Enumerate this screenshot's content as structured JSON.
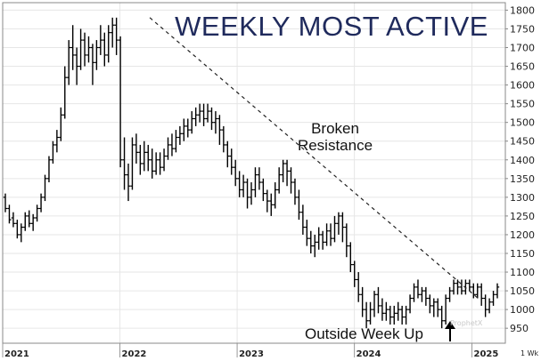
{
  "chart_data": {
    "type": "ohlc",
    "title": "WEEKLY MOST ACTIVE",
    "ylim": [
      910,
      1820
    ],
    "y_ticks": [
      "950",
      "1000",
      "1050",
      "1100",
      "1150",
      "1200",
      "1250",
      "1300",
      "1350",
      "1400",
      "1450",
      "1500",
      "1550",
      "1600",
      "1650",
      "1700",
      "1750",
      "1800"
    ],
    "x_ticks": [
      "2021",
      "2022",
      "2023",
      "2024",
      "2025"
    ],
    "x_tick_dates": [
      "2021-01-01",
      "2022-01-01",
      "2023-01-01",
      "2024-01-01",
      "2025-01-01"
    ],
    "interval_label": "1 Wk",
    "watermark": "ProphetX",
    "annotations": {
      "broken_resistance": [
        "Broken",
        "Resistance"
      ],
      "outside_week_up": "Outside Week Up"
    },
    "trendline": {
      "style": "dashed",
      "from": {
        "date": "2022-04-04",
        "y": 1780
      },
      "to": {
        "date": "2025-01-20",
        "y": 1030
      }
    },
    "series": [
      {
        "values": [
          [
            1300,
            1270,
            1310,
            1260
          ],
          [
            1270,
            1240,
            1280,
            1230
          ],
          [
            1245,
            1230,
            1260,
            1220
          ],
          [
            1230,
            1200,
            1240,
            1190
          ],
          [
            1200,
            1220,
            1230,
            1180
          ],
          [
            1220,
            1250,
            1260,
            1210
          ],
          [
            1250,
            1230,
            1265,
            1220
          ],
          [
            1230,
            1245,
            1255,
            1210
          ],
          [
            1245,
            1270,
            1280,
            1235
          ],
          [
            1270,
            1300,
            1310,
            1260
          ],
          [
            1300,
            1350,
            1360,
            1290
          ],
          [
            1350,
            1400,
            1410,
            1340
          ],
          [
            1400,
            1440,
            1450,
            1390
          ],
          [
            1440,
            1460,
            1480,
            1420
          ],
          [
            1460,
            1520,
            1540,
            1450
          ],
          [
            1520,
            1620,
            1650,
            1510
          ],
          [
            1620,
            1700,
            1720,
            1600
          ],
          [
            1700,
            1680,
            1760,
            1640
          ],
          [
            1680,
            1650,
            1700,
            1600
          ],
          [
            1650,
            1720,
            1750,
            1640
          ],
          [
            1720,
            1680,
            1740,
            1650
          ],
          [
            1680,
            1700,
            1730,
            1660
          ],
          [
            1700,
            1660,
            1710,
            1600
          ],
          [
            1660,
            1700,
            1720,
            1640
          ],
          [
            1700,
            1720,
            1760,
            1680
          ],
          [
            1720,
            1680,
            1740,
            1650
          ],
          [
            1680,
            1740,
            1760,
            1660
          ],
          [
            1740,
            1760,
            1780,
            1700
          ],
          [
            1760,
            1720,
            1780,
            1680
          ],
          [
            1720,
            1400,
            1730,
            1380
          ],
          [
            1400,
            1360,
            1460,
            1320
          ],
          [
            1360,
            1330,
            1390,
            1290
          ],
          [
            1330,
            1440,
            1460,
            1320
          ],
          [
            1440,
            1420,
            1470,
            1390
          ],
          [
            1420,
            1390,
            1440,
            1360
          ],
          [
            1390,
            1420,
            1450,
            1370
          ],
          [
            1420,
            1400,
            1440,
            1370
          ],
          [
            1400,
            1370,
            1430,
            1350
          ],
          [
            1370,
            1400,
            1420,
            1360
          ],
          [
            1400,
            1380,
            1420,
            1360
          ],
          [
            1380,
            1410,
            1430,
            1370
          ],
          [
            1410,
            1440,
            1460,
            1400
          ],
          [
            1440,
            1430,
            1470,
            1410
          ],
          [
            1430,
            1460,
            1480,
            1420
          ],
          [
            1460,
            1470,
            1490,
            1440
          ],
          [
            1470,
            1490,
            1510,
            1450
          ],
          [
            1490,
            1480,
            1510,
            1460
          ],
          [
            1480,
            1510,
            1530,
            1470
          ],
          [
            1510,
            1520,
            1540,
            1490
          ],
          [
            1520,
            1530,
            1550,
            1500
          ],
          [
            1530,
            1510,
            1550,
            1490
          ],
          [
            1510,
            1530,
            1550,
            1500
          ],
          [
            1530,
            1500,
            1540,
            1480
          ],
          [
            1500,
            1510,
            1530,
            1470
          ],
          [
            1510,
            1480,
            1520,
            1440
          ],
          [
            1480,
            1440,
            1490,
            1420
          ],
          [
            1440,
            1410,
            1450,
            1380
          ],
          [
            1410,
            1380,
            1430,
            1360
          ],
          [
            1380,
            1350,
            1400,
            1330
          ],
          [
            1350,
            1320,
            1370,
            1300
          ],
          [
            1320,
            1340,
            1360,
            1300
          ],
          [
            1340,
            1300,
            1350,
            1270
          ],
          [
            1300,
            1320,
            1340,
            1280
          ],
          [
            1320,
            1360,
            1380,
            1300
          ],
          [
            1360,
            1340,
            1380,
            1320
          ],
          [
            1340,
            1310,
            1350,
            1290
          ],
          [
            1310,
            1290,
            1320,
            1260
          ],
          [
            1290,
            1280,
            1310,
            1250
          ],
          [
            1280,
            1320,
            1340,
            1270
          ],
          [
            1320,
            1360,
            1380,
            1310
          ],
          [
            1360,
            1390,
            1400,
            1340
          ],
          [
            1390,
            1370,
            1400,
            1330
          ],
          [
            1370,
            1340,
            1380,
            1310
          ],
          [
            1340,
            1300,
            1350,
            1280
          ],
          [
            1300,
            1260,
            1320,
            1240
          ],
          [
            1260,
            1220,
            1280,
            1200
          ],
          [
            1220,
            1190,
            1240,
            1170
          ],
          [
            1190,
            1170,
            1210,
            1150
          ],
          [
            1170,
            1180,
            1200,
            1140
          ],
          [
            1180,
            1200,
            1220,
            1160
          ],
          [
            1200,
            1180,
            1210,
            1160
          ],
          [
            1180,
            1210,
            1230,
            1170
          ],
          [
            1210,
            1190,
            1230,
            1170
          ],
          [
            1190,
            1230,
            1250,
            1180
          ],
          [
            1230,
            1250,
            1260,
            1200
          ],
          [
            1250,
            1220,
            1260,
            1180
          ],
          [
            1220,
            1170,
            1230,
            1140
          ],
          [
            1170,
            1120,
            1180,
            1100
          ],
          [
            1120,
            1080,
            1130,
            1060
          ],
          [
            1080,
            1040,
            1100,
            1020
          ],
          [
            1040,
            1000,
            1060,
            980
          ],
          [
            1000,
            970,
            1020,
            950
          ],
          [
            970,
            1000,
            1020,
            960
          ],
          [
            1000,
            1040,
            1050,
            980
          ],
          [
            1040,
            1010,
            1060,
            990
          ],
          [
            1010,
            990,
            1030,
            970
          ],
          [
            990,
            1000,
            1020,
            970
          ],
          [
            1000,
            980,
            1010,
            960
          ],
          [
            980,
            990,
            1010,
            960
          ],
          [
            990,
            1000,
            1020,
            970
          ],
          [
            1000,
            980,
            1010,
            960
          ],
          [
            980,
            1000,
            1010,
            960
          ],
          [
            1000,
            1030,
            1040,
            990
          ],
          [
            1030,
            1060,
            1070,
            1020
          ],
          [
            1060,
            1040,
            1080,
            1030
          ],
          [
            1040,
            1050,
            1060,
            1020
          ],
          [
            1050,
            1030,
            1060,
            1010
          ],
          [
            1030,
            1010,
            1040,
            990
          ],
          [
            1010,
            1020,
            1030,
            980
          ],
          [
            1020,
            1000,
            1030,
            980
          ],
          [
            1000,
            970,
            1010,
            950
          ],
          [
            970,
            1030,
            1040,
            960
          ],
          [
            1030,
            1050,
            1060,
            1020
          ],
          [
            1050,
            1070,
            1080,
            1040
          ],
          [
            1070,
            1060,
            1080,
            1040
          ],
          [
            1060,
            1050,
            1080,
            1040
          ],
          [
            1050,
            1070,
            1080,
            1040
          ],
          [
            1070,
            1060,
            1080,
            1050
          ],
          [
            1060,
            1040,
            1070,
            1030
          ],
          [
            1040,
            1060,
            1070,
            1030
          ],
          [
            1060,
            1030,
            1070,
            1010
          ],
          [
            1030,
            1000,
            1040,
            980
          ],
          [
            1000,
            1020,
            1030,
            990
          ],
          [
            1020,
            1040,
            1050,
            1010
          ],
          [
            1040,
            1060,
            1070,
            1030
          ]
        ]
      }
    ]
  }
}
